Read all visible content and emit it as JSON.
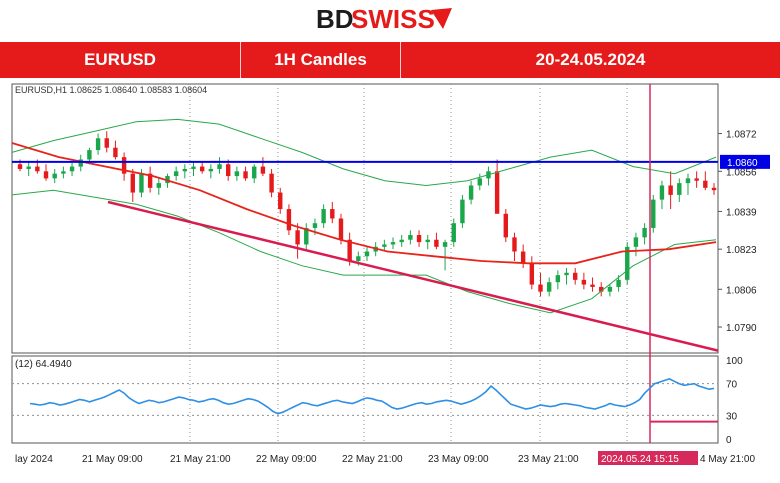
{
  "branding": {
    "logo_text": "BDSWISS",
    "logo_part1": "BD",
    "logo_part2": "SWISS"
  },
  "header": {
    "symbol": "EURUSD",
    "timeframe": "1H Candles",
    "date_range": "20-24.05.2024"
  },
  "colors": {
    "brand_red": "#e51b1b",
    "up_candle": "#1aa64b",
    "down_candle": "#e51b1b",
    "ma": "#e8231b",
    "bands": "#2aa84a",
    "resistance": "#0000e6",
    "trendline": "#d91c4f",
    "rsi": "#2d8fe6",
    "marker": "#d62a5c",
    "grid": "#909090"
  },
  "chart_data": [
    {
      "type": "candlestick",
      "info_line": "EURUSD,H1  1.08625 1.08640 1.08583 1.08604",
      "ylim": [
        1.0779,
        1.0893
      ],
      "y_ticks": [
        "1.0872",
        "1.0856",
        "1.0839",
        "1.0823",
        "1.0806",
        "1.0790"
      ],
      "y_tick_values": [
        1.0872,
        1.0856,
        1.0839,
        1.0823,
        1.0806,
        1.079
      ],
      "x_ticks": [
        "lay 2024",
        "21 May 09:00",
        "21 May 21:00",
        "22 May 09:00",
        "22 May 21:00",
        "23 May 09:00",
        "23 May 21:00",
        "4 May 21:00"
      ],
      "resistance_level": 1.086,
      "resistance_label": "1.0860",
      "marker_label": "2024.05.24 15:15",
      "grid": true,
      "candles_ohlc": [
        [
          1.0859,
          1.0861,
          1.0856,
          1.0857
        ],
        [
          1.0857,
          1.086,
          1.0854,
          1.0858
        ],
        [
          1.0858,
          1.0861,
          1.0855,
          1.0856
        ],
        [
          1.0856,
          1.0859,
          1.0852,
          1.0853
        ],
        [
          1.0853,
          1.0857,
          1.0851,
          1.0855
        ],
        [
          1.0855,
          1.0858,
          1.0853,
          1.0856
        ],
        [
          1.0856,
          1.086,
          1.0854,
          1.0858
        ],
        [
          1.0858,
          1.0863,
          1.0856,
          1.0861
        ],
        [
          1.0861,
          1.0866,
          1.0859,
          1.0865
        ],
        [
          1.0865,
          1.0872,
          1.0863,
          1.087
        ],
        [
          1.087,
          1.0873,
          1.0864,
          1.0866
        ],
        [
          1.0866,
          1.0869,
          1.0861,
          1.0862
        ],
        [
          1.0862,
          1.0864,
          1.0852,
          1.0855
        ],
        [
          1.0855,
          1.0857,
          1.0843,
          1.0847
        ],
        [
          1.0847,
          1.0857,
          1.0845,
          1.0855
        ],
        [
          1.0855,
          1.0858,
          1.0847,
          1.0849
        ],
        [
          1.0849,
          1.0853,
          1.0846,
          1.0851
        ],
        [
          1.0851,
          1.0855,
          1.0849,
          1.0854
        ],
        [
          1.0854,
          1.0858,
          1.0852,
          1.0856
        ],
        [
          1.0856,
          1.0859,
          1.0853,
          1.0857
        ],
        [
          1.0857,
          1.086,
          1.0854,
          1.0858
        ],
        [
          1.0858,
          1.086,
          1.0855,
          1.0856
        ],
        [
          1.0856,
          1.0859,
          1.0853,
          1.0857
        ],
        [
          1.0857,
          1.0862,
          1.0855,
          1.0859
        ],
        [
          1.0859,
          1.0861,
          1.0852,
          1.0854
        ],
        [
          1.0854,
          1.0858,
          1.0852,
          1.0856
        ],
        [
          1.0856,
          1.0858,
          1.0852,
          1.0853
        ],
        [
          1.0853,
          1.0859,
          1.0851,
          1.0858
        ],
        [
          1.0858,
          1.0862,
          1.0854,
          1.0855
        ],
        [
          1.0855,
          1.0857,
          1.0845,
          1.0847
        ],
        [
          1.0847,
          1.0849,
          1.0838,
          1.084
        ],
        [
          1.084,
          1.0842,
          1.0829,
          1.0831
        ],
        [
          1.0831,
          1.0834,
          1.0819,
          1.0825
        ],
        [
          1.0825,
          1.0834,
          1.0823,
          1.0832
        ],
        [
          1.0832,
          1.0836,
          1.0829,
          1.0834
        ],
        [
          1.0834,
          1.0842,
          1.0832,
          1.084
        ],
        [
          1.084,
          1.0843,
          1.0834,
          1.0836
        ],
        [
          1.0836,
          1.0838,
          1.0825,
          1.0827
        ],
        [
          1.0827,
          1.083,
          1.0816,
          1.0818
        ],
        [
          1.0818,
          1.0822,
          1.0816,
          1.082
        ],
        [
          1.082,
          1.0824,
          1.0818,
          1.0822
        ],
        [
          1.0822,
          1.0826,
          1.082,
          1.0824
        ],
        [
          1.0824,
          1.0827,
          1.0822,
          1.0825
        ],
        [
          1.0825,
          1.0828,
          1.0823,
          1.0826
        ],
        [
          1.0826,
          1.0829,
          1.0824,
          1.0827
        ],
        [
          1.0827,
          1.0831,
          1.0825,
          1.0829
        ],
        [
          1.0829,
          1.0831,
          1.0824,
          1.0826
        ],
        [
          1.0826,
          1.0829,
          1.0823,
          1.0827
        ],
        [
          1.0827,
          1.083,
          1.0823,
          1.0824
        ],
        [
          1.0824,
          1.0827,
          1.0814,
          1.0826
        ],
        [
          1.0826,
          1.0836,
          1.0824,
          1.0834
        ],
        [
          1.0834,
          1.0846,
          1.0832,
          1.0844
        ],
        [
          1.0844,
          1.0852,
          1.0842,
          1.085
        ],
        [
          1.085,
          1.0855,
          1.0848,
          1.0853
        ],
        [
          1.0853,
          1.0858,
          1.085,
          1.0856
        ],
        [
          1.0856,
          1.0861,
          1.0852,
          1.0838
        ],
        [
          1.0838,
          1.084,
          1.0826,
          1.0828
        ],
        [
          1.0828,
          1.083,
          1.0818,
          1.0822
        ],
        [
          1.0822,
          1.0825,
          1.0815,
          1.0817
        ],
        [
          1.0817,
          1.082,
          1.0806,
          1.0808
        ],
        [
          1.0808,
          1.0813,
          1.0803,
          1.0805
        ],
        [
          1.0805,
          1.0811,
          1.0803,
          1.0809
        ],
        [
          1.0809,
          1.0814,
          1.0806,
          1.0812
        ],
        [
          1.0812,
          1.0815,
          1.0808,
          1.0813
        ],
        [
          1.0813,
          1.0815,
          1.0808,
          1.081
        ],
        [
          1.081,
          1.0813,
          1.0806,
          1.0808
        ],
        [
          1.0808,
          1.0811,
          1.0805,
          1.0807
        ],
        [
          1.0807,
          1.0809,
          1.0803,
          1.0805
        ],
        [
          1.0805,
          1.0808,
          1.0803,
          1.0807
        ],
        [
          1.0807,
          1.0812,
          1.0805,
          1.081
        ],
        [
          1.081,
          1.0826,
          1.0808,
          1.0824
        ],
        [
          1.0824,
          1.083,
          1.082,
          1.0828
        ],
        [
          1.0828,
          1.0834,
          1.0825,
          1.0832
        ],
        [
          1.0832,
          1.0846,
          1.083,
          1.0844
        ],
        [
          1.0844,
          1.0852,
          1.084,
          1.085
        ],
        [
          1.085,
          1.0856,
          1.084,
          1.0846
        ],
        [
          1.0846,
          1.0853,
          1.0843,
          1.0851
        ],
        [
          1.0851,
          1.0855,
          1.0846,
          1.0853
        ],
        [
          1.0853,
          1.0856,
          1.0849,
          1.0852
        ],
        [
          1.0852,
          1.0856,
          1.0848,
          1.0849
        ],
        [
          1.0849,
          1.0851,
          1.0846,
          1.0848
        ]
      ],
      "ma_values": [
        1.0868,
        1.0862,
        1.0858,
        1.0854,
        1.0848,
        1.084,
        1.0833,
        1.0827,
        1.0822,
        1.082,
        1.0818,
        1.0817,
        1.0817,
        1.0822,
        1.0823,
        1.0826
      ],
      "upper_band": [
        1.0864,
        1.0869,
        1.0873,
        1.0877,
        1.0878,
        1.0876,
        1.087,
        1.0864,
        1.0857,
        1.0852,
        1.085,
        1.0852,
        1.0857,
        1.0862,
        1.0865,
        1.0858,
        1.0855,
        1.0862
      ],
      "lower_band": [
        1.0846,
        1.0848,
        1.0845,
        1.0842,
        1.0837,
        1.083,
        1.0822,
        1.0816,
        1.0812,
        1.0812,
        1.0812,
        1.0805,
        1.08,
        1.0796,
        1.0802,
        1.0816,
        1.0825,
        1.0827
      ],
      "trendline_points": [
        [
          0.0,
          1.0843
        ],
        [
          1.0,
          1.078
        ]
      ]
    },
    {
      "type": "line",
      "label": "(12) 64.4940",
      "ylim": [
        -5,
        105
      ],
      "y_ticks": [
        "100",
        "70",
        "30",
        "0"
      ],
      "levels": [
        70,
        30
      ],
      "values": [
        45,
        44,
        43,
        44,
        46,
        45,
        43,
        44,
        46,
        48,
        50,
        49,
        47,
        49,
        51,
        53,
        56,
        59,
        62,
        58,
        52,
        48,
        45,
        47,
        49,
        48,
        46,
        47,
        49,
        51,
        53,
        52,
        50,
        49,
        47,
        48,
        50,
        51,
        49,
        46,
        44,
        45,
        47,
        49,
        51,
        50,
        48,
        44,
        40,
        35,
        32,
        34,
        37,
        40,
        43,
        46,
        45,
        43,
        42,
        44,
        46,
        48,
        49,
        47,
        46,
        45,
        47,
        50,
        52,
        51,
        49,
        48,
        44,
        40,
        38,
        39,
        41,
        43,
        45,
        46,
        44,
        45,
        47,
        48,
        49,
        48,
        46,
        44,
        46,
        48,
        51,
        55,
        60,
        67,
        62,
        56,
        50,
        44,
        42,
        40,
        38,
        39,
        41,
        43,
        42,
        41,
        42,
        44,
        45,
        44,
        43,
        42,
        40,
        39,
        38,
        40,
        42,
        45,
        43,
        42,
        41,
        43,
        46,
        50,
        58,
        64,
        70,
        72,
        74,
        76,
        73,
        70,
        68,
        69,
        70,
        67,
        65,
        63,
        64
      ]
    }
  ]
}
